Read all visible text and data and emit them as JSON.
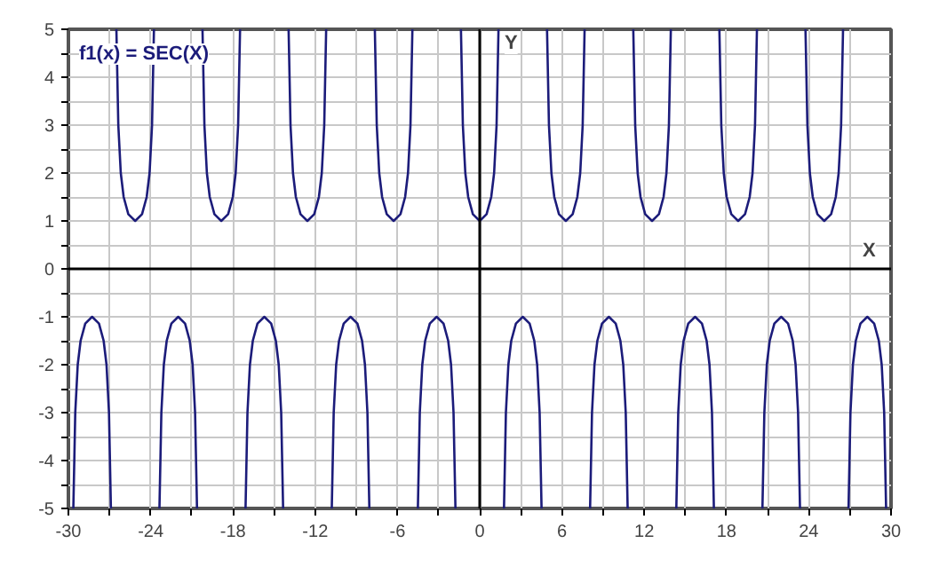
{
  "chart_data": {
    "type": "line",
    "xlabel": "X",
    "ylabel": "Y",
    "xlim": [
      -30,
      30
    ],
    "ylim": [
      -5,
      5
    ],
    "xticks": [
      -30,
      {
        "value": -27,
        "label": null
      },
      -24,
      {
        "value": -21,
        "label": null
      },
      -18,
      {
        "value": -15,
        "label": null
      },
      -12,
      {
        "value": -9,
        "label": null
      },
      -6,
      {
        "value": -3,
        "label": null
      },
      0,
      {
        "value": 3,
        "label": null
      },
      6,
      {
        "value": 9,
        "label": null
      },
      12,
      {
        "value": 15,
        "label": null
      },
      18,
      {
        "value": 21,
        "label": null
      },
      24,
      {
        "value": 27,
        "label": null
      },
      30
    ],
    "yticks": [
      -5,
      {
        "value": -4.5,
        "label": null
      },
      -4,
      {
        "value": -3.5,
        "label": null
      },
      -3,
      {
        "value": -2.5,
        "label": null
      },
      -2,
      {
        "value": -1.5,
        "label": null
      },
      -1,
      {
        "value": -0.5,
        "label": null
      },
      0,
      {
        "value": 0.5,
        "label": null
      },
      1,
      {
        "value": 1.5,
        "label": null
      },
      2,
      {
        "value": 2.5,
        "label": null
      },
      3,
      {
        "value": 3.5,
        "label": null
      },
      4,
      {
        "value": 4.5,
        "label": null
      },
      5
    ],
    "grid": true,
    "legend": "top left",
    "marker": "none",
    "line_style": "solid",
    "series": [
      {
        "name": "f1(x) = SEC(X)",
        "color": "#1c1c7a",
        "x": [
          -29.64,
          -29.5,
          -29.32,
          -29.11,
          -28.77,
          -28.27,
          -27.77,
          -27.43,
          -27.22,
          -27.04,
          -26.9,
          -26.7,
          -26.5,
          -26.36,
          -26.18,
          -25.97,
          -25.63,
          -25.13,
          -24.63,
          -24.29,
          -24.08,
          -23.9,
          -23.76,
          -23.56,
          -23.36,
          -23.22,
          -23.04,
          -22.83,
          -22.49,
          -21.99,
          -21.49,
          -21.15,
          -20.94,
          -20.76,
          -20.62,
          -20.42,
          -20.22,
          -20.08,
          -19.9,
          -19.69,
          -19.35,
          -18.85,
          -18.35,
          -18.01,
          -17.8,
          -17.62,
          -17.48,
          -17.28,
          -17.08,
          -16.94,
          -16.76,
          -16.55,
          -16.21,
          -15.71,
          -15.21,
          -14.87,
          -14.66,
          -14.48,
          -14.34,
          -14.14,
          -13.94,
          -13.8,
          -13.62,
          -13.41,
          -13.07,
          -12.57,
          -12.07,
          -11.73,
          -11.52,
          -11.34,
          -11.2,
          -11.0,
          -10.79,
          -10.65,
          -10.47,
          -10.26,
          -9.92,
          -9.42,
          -8.92,
          -8.58,
          -8.37,
          -8.19,
          -8.05,
          -7.85,
          -7.65,
          -7.51,
          -7.33,
          -7.12,
          -6.78,
          -6.28,
          -5.78,
          -5.44,
          -5.23,
          -5.05,
          -4.91,
          -4.71,
          -4.51,
          -4.37,
          -4.19,
          -3.98,
          -3.64,
          -3.14,
          -2.64,
          -2.3,
          -2.09,
          -1.91,
          -1.77,
          -1.57,
          -1.37,
          -1.23,
          -1.05,
          -0.84,
          -0.5,
          0,
          0.5,
          0.84,
          1.05,
          1.23,
          1.37,
          1.57,
          1.77,
          1.91,
          2.09,
          2.3,
          2.64,
          3.14,
          3.64,
          3.98,
          4.19,
          4.37,
          4.51,
          4.71,
          4.91,
          5.05,
          5.23,
          5.44,
          5.78,
          6.28,
          6.78,
          7.12,
          7.33,
          7.51,
          7.65,
          7.85,
          8.05,
          8.19,
          8.37,
          8.58,
          8.92,
          9.42,
          9.92,
          10.26,
          10.47,
          10.65,
          10.79,
          11.0,
          11.2,
          11.34,
          11.52,
          11.73,
          12.07,
          12.57,
          13.07,
          13.41,
          13.62,
          13.8,
          13.94,
          14.14,
          14.34,
          14.48,
          14.66,
          14.87,
          15.21,
          15.71,
          16.21,
          16.55,
          16.76,
          16.94,
          17.08,
          17.28,
          17.48,
          17.62,
          17.8,
          18.01,
          18.35,
          18.85,
          19.35,
          19.69,
          19.9,
          20.08,
          20.22,
          20.42,
          20.62,
          20.76,
          20.94,
          21.15,
          21.49,
          21.99,
          22.49,
          22.83,
          23.04,
          23.22,
          23.36,
          23.56,
          23.76,
          23.9,
          24.08,
          24.29,
          24.63,
          25.13,
          25.63,
          25.97,
          26.18,
          26.36,
          26.5,
          26.7,
          26.9,
          27.04,
          27.22,
          27.43,
          27.77,
          28.27,
          28.77,
          29.11,
          29.32,
          29.5,
          29.64
        ],
        "values": [
          -5,
          -3,
          -2,
          -1.5,
          -1.14,
          -1,
          -1.14,
          -1.5,
          -2,
          -3,
          -5,
          null,
          5,
          3,
          2,
          1.5,
          1.14,
          1,
          1.14,
          1.5,
          2,
          3,
          5,
          null,
          -5,
          -3,
          -2,
          -1.5,
          -1.14,
          -1,
          -1.14,
          -1.5,
          -2,
          -3,
          -5,
          null,
          5,
          3,
          2,
          1.5,
          1.14,
          1,
          1.14,
          1.5,
          2,
          3,
          5,
          null,
          -5,
          -3,
          -2,
          -1.5,
          -1.14,
          -1,
          -1.14,
          -1.5,
          -2,
          -3,
          -5,
          null,
          5,
          3,
          2,
          1.5,
          1.14,
          1,
          1.14,
          1.5,
          2,
          3,
          5,
          null,
          -5,
          -3,
          -2,
          -1.5,
          -1.14,
          -1,
          -1.14,
          -1.5,
          -2,
          -3,
          -5,
          null,
          5,
          3,
          2,
          1.5,
          1.14,
          1,
          1.14,
          1.5,
          2,
          3,
          5,
          null,
          -5,
          -3,
          -2,
          -1.5,
          -1.14,
          -1,
          -1.14,
          -1.5,
          -2,
          -3,
          -5,
          null,
          5,
          3,
          2,
          1.5,
          1.14,
          1,
          1.14,
          1.5,
          2,
          3,
          5,
          null,
          -5,
          -3,
          -2,
          -1.5,
          -1.14,
          -1,
          -1.14,
          -1.5,
          -2,
          -3,
          -5,
          null,
          5,
          3,
          2,
          1.5,
          1.14,
          1,
          1.14,
          1.5,
          2,
          3,
          5,
          null,
          -5,
          -3,
          -2,
          -1.5,
          -1.14,
          -1,
          -1.14,
          -1.5,
          -2,
          -3,
          -5,
          null,
          5,
          3,
          2,
          1.5,
          1.14,
          1,
          1.14,
          1.5,
          2,
          3,
          5,
          null,
          -5,
          -3,
          -2,
          -1.5,
          -1.14,
          -1,
          -1.14,
          -1.5,
          -2,
          -3,
          -5,
          null,
          5,
          3,
          2,
          1.5,
          1.14,
          1,
          1.14,
          1.5,
          2,
          3,
          5,
          null,
          -5,
          -3,
          -2,
          -1.5,
          -1.14,
          -1,
          -1.14,
          -1.5,
          -2,
          -3,
          -5,
          null,
          5,
          3,
          2,
          1.5,
          1.14,
          1,
          1.14,
          1.5,
          2,
          3,
          5,
          null,
          -5,
          -3,
          -2,
          -1.5,
          -1.14,
          -1,
          -1.14,
          -1.5,
          -2,
          -3,
          -5
        ]
      }
    ]
  }
}
